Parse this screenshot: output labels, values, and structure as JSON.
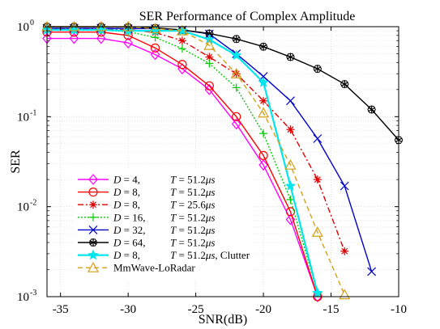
{
  "chart_data": {
    "type": "line",
    "title": "SER Performance of Complex Amplitude",
    "xlabel": "SNR(dB)",
    "ylabel": "SER",
    "xlim": [
      -36,
      -10
    ],
    "ylim": [
      0.001,
      1
    ],
    "yscale": "log",
    "grid": true,
    "legend_position": "bottom-left",
    "x_ticks": [
      -35,
      -30,
      -25,
      -20,
      -15,
      -10
    ],
    "x_tick_labels": [
      "-35",
      "-30",
      "-25",
      "-20",
      "-15",
      "-10"
    ],
    "y_ticks": [
      0.001,
      0.01,
      0.1,
      1
    ],
    "y_tick_labels": [
      {
        "base": "10",
        "exp": "-3"
      },
      {
        "base": "10",
        "exp": "-2"
      },
      {
        "base": "10",
        "exp": "-1"
      },
      {
        "base": "10",
        "exp": "0"
      }
    ],
    "series": [
      {
        "name": "D = 4,   T = 51.2μs",
        "legend": {
          "var1": "D",
          "val1": " = 4,",
          "var2": "T",
          "val2": " = 51.2",
          "mu": "μ",
          "unit": "s",
          "extra": ""
        },
        "color": "#ff00ff",
        "dash": "solid",
        "marker": "diamond",
        "x": [
          -36,
          -34,
          -32,
          -30,
          -28,
          -26,
          -24,
          -22,
          -20,
          -18,
          -16
        ],
        "y": [
          0.74,
          0.74,
          0.74,
          0.66,
          0.49,
          0.34,
          0.2,
          0.083,
          0.029,
          0.0072,
          0.001
        ]
      },
      {
        "name": "D = 8,   T = 51.2μs",
        "legend": {
          "var1": "D",
          "val1": " = 8,",
          "var2": "T",
          "val2": " = 51.2",
          "mu": "μ",
          "unit": "s",
          "extra": ""
        },
        "color": "#ff0000",
        "dash": "solid",
        "marker": "circle",
        "x": [
          -36,
          -34,
          -32,
          -30,
          -28,
          -26,
          -24,
          -22,
          -20,
          -18,
          -16
        ],
        "y": [
          0.87,
          0.87,
          0.87,
          0.8,
          0.58,
          0.38,
          0.22,
          0.1,
          0.037,
          0.0088,
          0.001
        ]
      },
      {
        "name": "D = 8,   T = 25.6μs",
        "legend": {
          "var1": "D",
          "val1": " = 8,",
          "var2": "T",
          "val2": " = 25.6",
          "mu": "μ",
          "unit": "s",
          "extra": ""
        },
        "color": "#e00000",
        "dash": "dashdot",
        "marker": "asterisk",
        "x": [
          -36,
          -34,
          -32,
          -30,
          -28,
          -26,
          -24,
          -22,
          -20,
          -18,
          -16,
          -14
        ],
        "y": [
          0.95,
          0.95,
          0.95,
          0.93,
          0.86,
          0.7,
          0.46,
          0.3,
          0.15,
          0.072,
          0.02,
          0.0032
        ]
      },
      {
        "name": "D = 16,  T = 51.2μs",
        "legend": {
          "var1": "D",
          "val1": " = 16,",
          "var2": "T",
          "val2": " = 51.2",
          "mu": "μ",
          "unit": "s",
          "extra": ""
        },
        "color": "#00cc00",
        "dash": "dotted",
        "marker": "plus",
        "x": [
          -36,
          -34,
          -32,
          -30,
          -28,
          -26,
          -24,
          -22,
          -20,
          -18,
          -16
        ],
        "y": [
          0.93,
          0.93,
          0.92,
          0.88,
          0.76,
          0.57,
          0.39,
          0.21,
          0.065,
          0.012,
          0.0011
        ]
      },
      {
        "name": "D = 32,  T = 51.2μs",
        "legend": {
          "var1": "D",
          "val1": " = 32,",
          "var2": "T",
          "val2": " = 51.2",
          "mu": "μ",
          "unit": "s",
          "extra": ""
        },
        "color": "#0000cc",
        "dash": "solid",
        "marker": "x",
        "x": [
          -36,
          -34,
          -32,
          -30,
          -28,
          -26,
          -24,
          -22,
          -20,
          -18,
          -16,
          -14,
          -12
        ],
        "y": [
          0.96,
          0.96,
          0.96,
          0.95,
          0.95,
          0.92,
          0.83,
          0.5,
          0.28,
          0.15,
          0.057,
          0.017,
          0.0019
        ]
      },
      {
        "name": "D = 64,  T = 51.2μs",
        "legend": {
          "var1": "D",
          "val1": " = 64,",
          "var2": "T",
          "val2": " = 51.2",
          "mu": "μ",
          "unit": "s",
          "extra": ""
        },
        "color": "#000000",
        "dash": "solid",
        "marker": "hexstar",
        "x": [
          -36,
          -34,
          -32,
          -30,
          -28,
          -26,
          -24,
          -22,
          -20,
          -18,
          -16,
          -14,
          -12,
          -10
        ],
        "y": [
          1,
          1,
          1,
          0.99,
          0.97,
          0.92,
          0.84,
          0.73,
          0.6,
          0.46,
          0.34,
          0.23,
          0.12,
          0.055
        ]
      },
      {
        "name": "D = 8,   T = 51.2μs, Clutter",
        "legend": {
          "var1": "D",
          "val1": " = 8,",
          "var2": "T",
          "val2": " = 51.2",
          "mu": "μ",
          "unit": "s",
          "extra": ", Clutter"
        },
        "color": "#00e5ee",
        "dash": "solid",
        "marker": "star5",
        "lineWidth": 2.2,
        "x": [
          -36,
          -34,
          -32,
          -30,
          -28,
          -26,
          -24,
          -22,
          -20,
          -18,
          -16
        ],
        "y": [
          0.92,
          0.92,
          0.92,
          0.9,
          0.9,
          0.9,
          0.72,
          0.48,
          0.24,
          0.017,
          0.0011
        ]
      },
      {
        "name": "MmWave-LoRadar",
        "legend": {
          "var1": "",
          "val1": "",
          "var2": "",
          "val2": "",
          "mu": "",
          "unit": "",
          "extra": "MmWave-LoRadar"
        },
        "color": "#d4a017",
        "dash": "dashed",
        "marker": "triangle",
        "x": [
          -36,
          -34,
          -32,
          -30,
          -28,
          -26,
          -24,
          -22,
          -20,
          -18,
          -16,
          -14
        ],
        "y": [
          1,
          1,
          1,
          1,
          0.95,
          0.9,
          0.62,
          0.3,
          0.11,
          0.029,
          0.0052,
          0.00105
        ]
      }
    ]
  }
}
